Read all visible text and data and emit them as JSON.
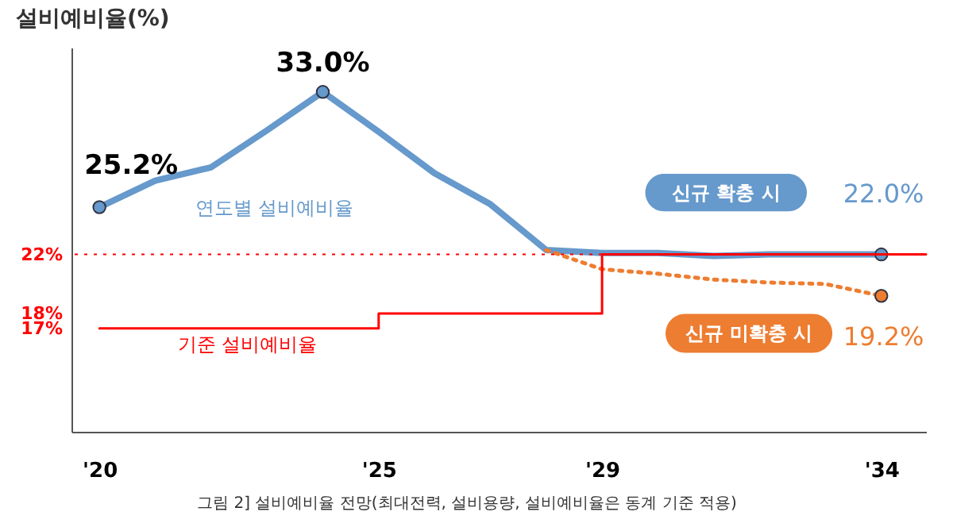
{
  "chart_data": {
    "type": "line",
    "ylabel": "설비예비율(%)",
    "x": [
      2020,
      2021,
      2022,
      2023,
      2024,
      2025,
      2026,
      2027,
      2028,
      2029,
      2030,
      2031,
      2032,
      2033,
      2034
    ],
    "xlim": [
      2019.5,
      2034.8
    ],
    "xticks": [
      {
        "value": 2020,
        "label": "'20"
      },
      {
        "value": 2025,
        "label": "'25"
      },
      {
        "value": 2029,
        "label": "'29"
      },
      {
        "value": 2034,
        "label": "'34"
      }
    ],
    "ylim": [
      10,
      36
    ],
    "yticks": [
      {
        "value": 17,
        "label": "17%"
      },
      {
        "value": 18,
        "label": "18%"
      },
      {
        "value": 22,
        "label": "22%"
      }
    ],
    "series": [
      {
        "name": "연도별 설비예비율",
        "color": "#6699cc",
        "values": [
          25.2,
          27.0,
          27.9,
          30.4,
          33.0,
          30.3,
          27.5,
          25.4,
          22.3,
          22.1,
          22.1,
          21.9,
          22.0,
          22.0,
          22.0
        ]
      },
      {
        "name": "신규 미확충 시",
        "color": "#ed7d31",
        "line_style": "dotted",
        "x": [
          2028,
          2029,
          2030,
          2031,
          2032,
          2033,
          2034
        ],
        "values": [
          22.3,
          21.0,
          20.7,
          20.3,
          20.1,
          20.0,
          19.2
        ]
      },
      {
        "name": "기준 설비예비율",
        "color": "#ff0000",
        "type": "step",
        "x": [
          2020,
          2025,
          2029,
          2034.8
        ],
        "values": [
          17,
          18,
          22,
          22
        ]
      }
    ],
    "ref_lines": [
      {
        "axis": "y",
        "value": 22,
        "color": "#ff0000",
        "line_style": "dotted"
      }
    ],
    "annotations": [
      {
        "text": "25.2%",
        "x": 2020,
        "y": 25.2
      },
      {
        "text": "33.0%",
        "x": 2024,
        "y": 33.0
      },
      {
        "text": "22.0%",
        "x": 2034,
        "y": 22.0
      },
      {
        "text": "19.2%",
        "x": 2034,
        "y": 19.2
      },
      {
        "text": "신규 확충 시",
        "x": 2032.5,
        "y": 22.0
      },
      "그림 2] 설비예비율 전망(최대전력, 설비용량, 설비예비율은 동계 기준 적용)"
    ],
    "grid": false,
    "legend": false
  }
}
